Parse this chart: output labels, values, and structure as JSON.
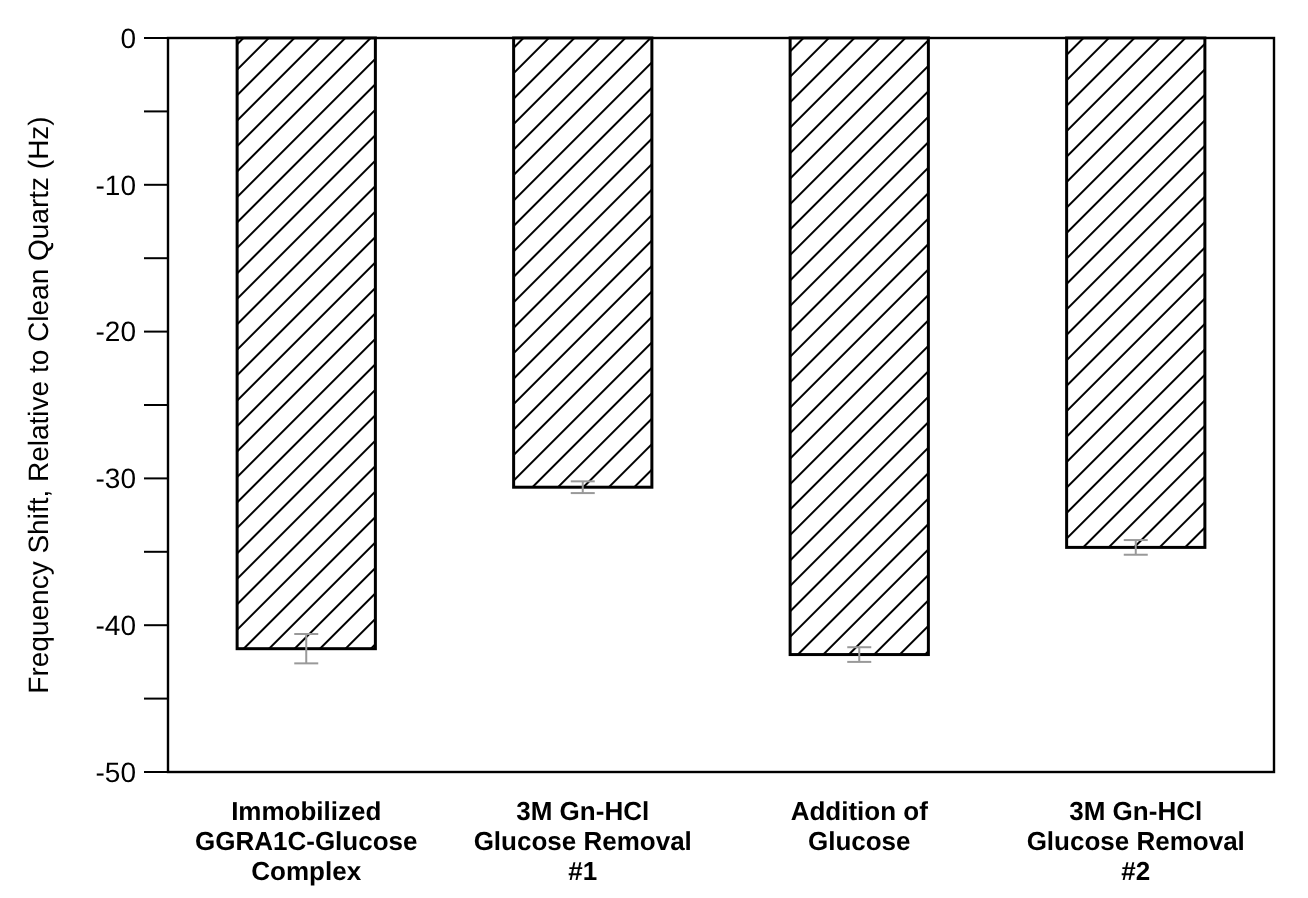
{
  "chart_data": {
    "type": "bar",
    "ylabel": "Frequency Shift, Relative to Clean Quartz (Hz)",
    "categories": [
      "Immobilized\nGGRA1C-Glucose\nComplex",
      "3M Gn-HCl\nGlucose Removal\n#1",
      "Addition of\nGlucose",
      "3M Gn-HCl\nGlucose Removal\n#2"
    ],
    "values": [
      -41.6,
      -30.6,
      -42.0,
      -34.7
    ],
    "errors": [
      1.0,
      0.4,
      0.5,
      0.5
    ],
    "color": "#000000",
    "ylim": [
      -50,
      0
    ],
    "yticks": [
      0,
      {
        "value": -5,
        "label": null
      },
      -10,
      {
        "value": -15,
        "label": null
      },
      -20,
      {
        "value": -25,
        "label": null
      },
      -30,
      {
        "value": -35,
        "label": null
      },
      -40,
      {
        "value": -45,
        "label": null
      },
      -50
    ],
    "grid": false
  }
}
